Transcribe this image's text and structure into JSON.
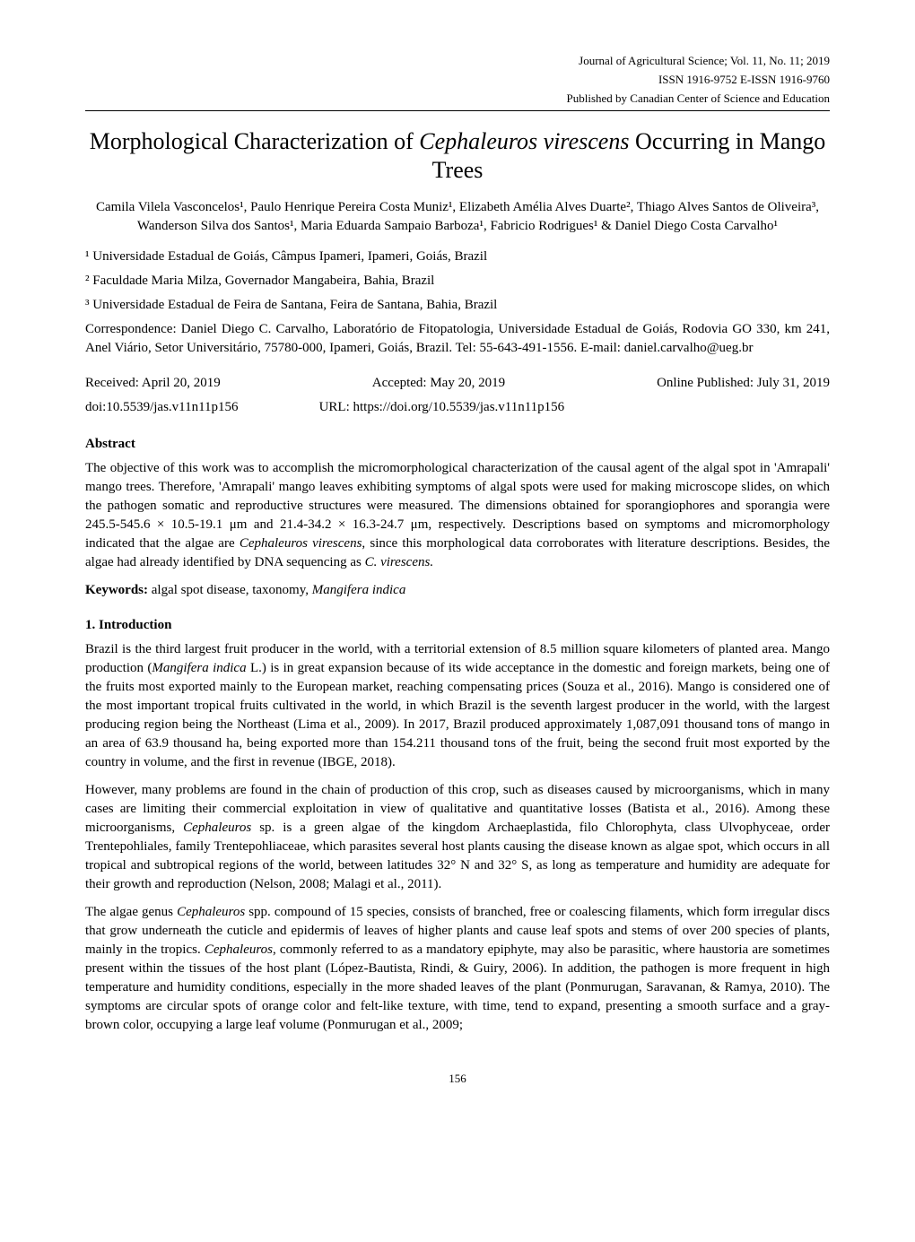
{
  "header": {
    "line1": "Journal of Agricultural Science; Vol. 11, No. 11; 2019",
    "line2": "ISSN 1916-9752   E-ISSN 1916-9760",
    "line3": "Published by Canadian Center of Science and Education"
  },
  "title": {
    "pre": "Morphological Characterization of ",
    "italic": "Cephaleuros virescens",
    "post": " Occurring in Mango Trees"
  },
  "authors": "Camila Vilela Vasconcelos¹, Paulo Henrique Pereira Costa Muniz¹, Elizabeth Amélia Alves Duarte², Thiago Alves Santos de Oliveira³, Wanderson Silva dos Santos¹, Maria Eduarda Sampaio Barboza¹, Fabricio Rodrigues¹ & Daniel Diego Costa Carvalho¹",
  "affiliations": [
    "¹ Universidade Estadual de Goiás, Câmpus Ipameri, Ipameri, Goiás, Brazil",
    "² Faculdade Maria Milza, Governador Mangabeira, Bahia, Brazil",
    "³ Universidade Estadual de Feira de Santana, Feira de Santana, Bahia, Brazil"
  ],
  "correspondence": "Correspondence: Daniel Diego C. Carvalho, Laboratório de Fitopatologia, Universidade Estadual de Goiás, Rodovia GO 330, km 241, Anel Viário, Setor Universitário, 75780-000, Ipameri, Goiás, Brazil. Tel: 55-643-491-1556. E-mail: daniel.carvalho@ueg.br",
  "dates": {
    "received": "Received: April 20, 2019",
    "accepted": "Accepted: May 20, 2019",
    "published": "Online Published: July 31, 2019"
  },
  "doi": {
    "doi": "doi:10.5539/jas.v11n11p156",
    "url": "URL: https://doi.org/10.5539/jas.v11n11p156"
  },
  "abstract": {
    "heading": "Abstract",
    "text_parts": [
      {
        "t": "The objective of this work was to accomplish the micromorphological characterization of the causal agent of the algal spot in 'Amrapali' mango trees. Therefore, 'Amrapali' mango leaves exhibiting symptoms of algal spots were used for making microscope slides, on which the pathogen somatic and reproductive structures were measured. The dimensions obtained for sporangiophores and sporangia were 245.5-545.6 × 10.5-19.1 μm and 21.4-34.2 × 16.3-24.7 μm, respectively. Descriptions based on symptoms and micromorphology indicated that the algae are "
      },
      {
        "i": "Cephaleuros virescens"
      },
      {
        "t": ", since this morphological data corroborates with literature descriptions. Besides, the algae had already identified by DNA sequencing as "
      },
      {
        "i": "C. virescens."
      }
    ]
  },
  "keywords": {
    "label": "Keywords:",
    "parts": [
      {
        "t": " algal spot disease, taxonomy, "
      },
      {
        "i": "Mangifera indica"
      }
    ]
  },
  "intro": {
    "heading": "1. Introduction",
    "paragraphs": [
      [
        {
          "t": "Brazil is the third largest fruit producer in the world, with a territorial extension of 8.5 million square kilometers of planted area. Mango production ("
        },
        {
          "i": "Mangifera indica"
        },
        {
          "t": " L.) is in great expansion because of its wide acceptance in the domestic and foreign markets, being one of the fruits most exported mainly to the European market, reaching compensating prices (Souza et al., 2016). Mango is considered one of the most important tropical fruits cultivated in the world, in which Brazil is the seventh largest producer in the world, with the largest producing region being the Northeast (Lima et al., 2009). In 2017, Brazil produced approximately 1,087,091 thousand tons of mango in an area of 63.9 thousand ha, being exported more than 154.211 thousand tons of the fruit, being the second fruit most exported by the country in volume, and the first in revenue (IBGE, 2018)."
        }
      ],
      [
        {
          "t": "However, many problems are found in the chain of production of this crop, such as diseases caused by microorganisms, which in many cases are limiting their commercial exploitation in view of qualitative and quantitative losses (Batista et al., 2016). Among these microorganisms, "
        },
        {
          "i": "Cephaleuros"
        },
        {
          "t": " sp. is a green algae of the kingdom Archaeplastida, filo Chlorophyta, class Ulvophyceae, order Trentepohliales, family Trentepohliaceae, which parasites several host plants causing the disease known as algae spot, which occurs in all tropical and subtropical regions of the world, between latitudes 32° N and 32° S, as long as temperature and humidity are adequate for their growth and reproduction (Nelson, 2008; Malagi et al., 2011)."
        }
      ],
      [
        {
          "t": "The algae genus "
        },
        {
          "i": "Cephaleuros"
        },
        {
          "t": " spp. compound of 15 species, consists of branched, free or coalescing filaments, which form irregular discs that grow underneath the cuticle and epidermis of leaves of higher plants and cause leaf spots and stems of over 200 species of plants, mainly in the tropics. "
        },
        {
          "i": "Cephaleuros"
        },
        {
          "t": ", commonly referred to as a mandatory epiphyte, may also be parasitic, where haustoria are sometimes present within the tissues of the host plant (López-Bautista, Rindi, & Guiry, 2006). In addition, the pathogen is more frequent in high temperature and humidity conditions, especially in the more shaded leaves of the plant (Ponmurugan, Saravanan, & Ramya, 2010). The symptoms are circular spots of orange color and felt-like texture, with time, tend to expand, presenting a smooth surface and a gray-brown color, occupying a large leaf volume (Ponmurugan et al., 2009;"
        }
      ]
    ]
  },
  "page_number": "156"
}
